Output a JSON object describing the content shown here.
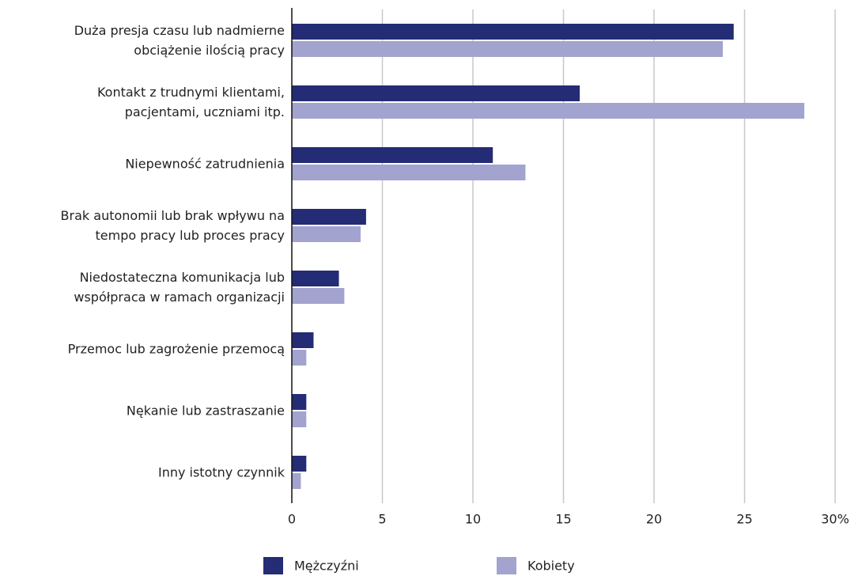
{
  "chart_data": {
    "type": "bar",
    "orientation": "horizontal",
    "categories": [
      "Duża presja czasu lub nadmierne\nobciążenie ilością pracy",
      "Kontakt z trudnymi klientami,\npacjentami, uczniami itp.",
      "Niepewność zatrudnienia",
      "Brak autonomii lub brak wpływu na\ntempo pracy lub proces pracy",
      "Niedostateczna komunikacja lub\nwspółpraca w ramach organizacji",
      "Przemoc lub zagrożenie przemocą",
      "Nękanie lub zastraszanie",
      "Inny istotny czynnik"
    ],
    "series": [
      {
        "name": "Mężczyźni",
        "color": "#232c74",
        "values": [
          24.4,
          15.9,
          11.1,
          4.1,
          2.6,
          1.2,
          0.8,
          0.8
        ]
      },
      {
        "name": "Kobiety",
        "color": "#a3a3cf",
        "values": [
          23.8,
          28.3,
          12.9,
          3.8,
          2.9,
          0.8,
          0.8,
          0.5
        ]
      }
    ],
    "xlim": [
      0,
      30
    ],
    "xticks": [
      0,
      5,
      10,
      15,
      20,
      25,
      {
        "value": 30,
        "label": "30%"
      }
    ],
    "grid": true,
    "legend": "bottom"
  }
}
